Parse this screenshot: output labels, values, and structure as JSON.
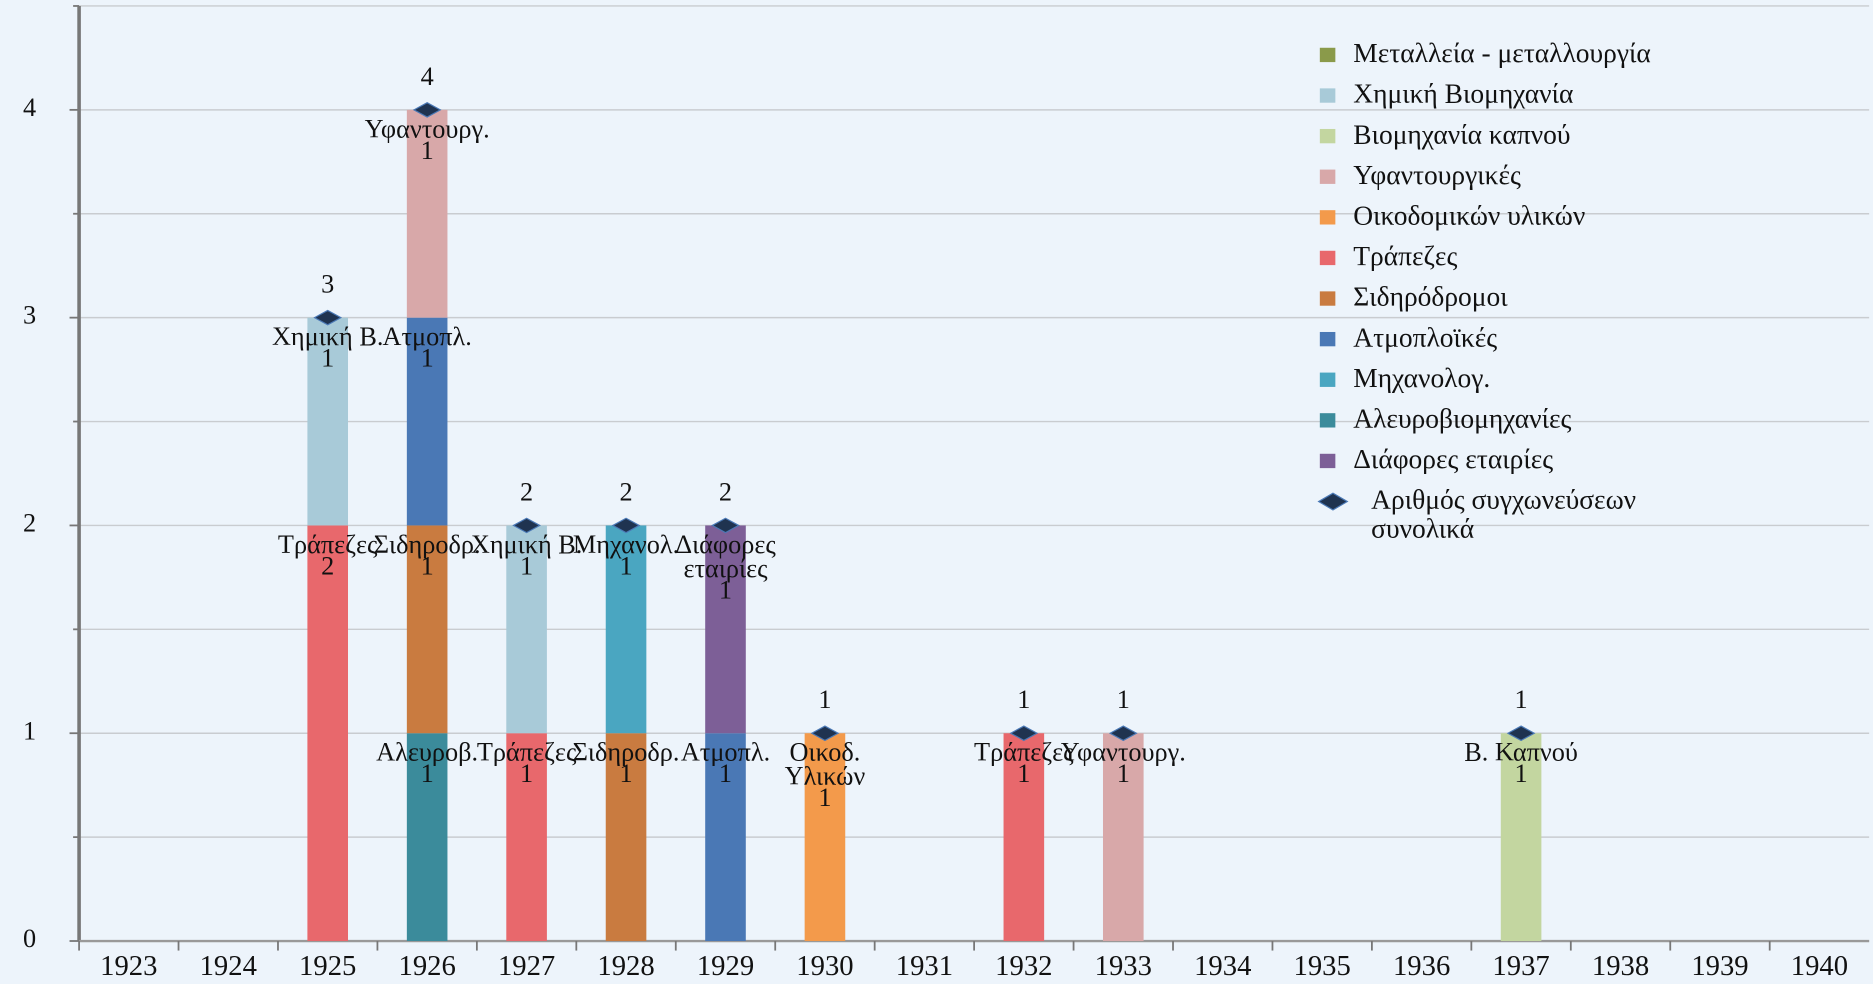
{
  "chart_data": {
    "type": "bar",
    "categories": [
      "1923",
      "1924",
      "1925",
      "1926",
      "1927",
      "1928",
      "1929",
      "1930",
      "1931",
      "1932",
      "1933",
      "1934",
      "1935",
      "1936",
      "1937",
      "1938",
      "1939",
      "1940"
    ],
    "ylim": [
      0,
      4.5
    ],
    "yticks": [
      0,
      1,
      2,
      3,
      4
    ],
    "minor_yticks": [
      0.5,
      1.5,
      2.5,
      3.5,
      4.5
    ],
    "grid": true,
    "stacked": true,
    "legend": "upper right",
    "series": [
      {
        "name": "Μεταλλεία - μεταλλουργία",
        "color": "#8a9a4a",
        "values": [
          0,
          0,
          0,
          0,
          0,
          0,
          0,
          0,
          0,
          0,
          0,
          0,
          0,
          0,
          0,
          0,
          0,
          0
        ],
        "labels": [
          null,
          null,
          null,
          null,
          null,
          null,
          null,
          null,
          null,
          null,
          null,
          null,
          null,
          null,
          null,
          null,
          null,
          null
        ]
      },
      {
        "name": "Χημική Βιομηχανία",
        "color": "#a8cad8",
        "values": [
          0,
          0,
          1,
          0,
          1,
          0,
          0,
          0,
          0,
          0,
          0,
          0,
          0,
          0,
          0,
          0,
          0,
          0
        ],
        "labels": [
          null,
          null,
          "Χημική Β.",
          null,
          "Χημική Β.",
          null,
          null,
          null,
          null,
          null,
          null,
          null,
          null,
          null,
          null,
          null,
          null,
          null
        ]
      },
      {
        "name": "Βιομηχανία καπνού",
        "color": "#c3d6a0",
        "values": [
          0,
          0,
          0,
          0,
          0,
          0,
          0,
          0,
          0,
          0,
          0,
          0,
          0,
          0,
          1,
          0,
          0,
          0
        ],
        "labels": [
          null,
          null,
          null,
          null,
          null,
          null,
          null,
          null,
          null,
          null,
          null,
          null,
          null,
          null,
          "Β. Καπνού",
          null,
          null,
          null
        ]
      },
      {
        "name": "Υφαντουργικές",
        "color": "#d8a8a9",
        "values": [
          0,
          0,
          0,
          1,
          0,
          0,
          0,
          0,
          0,
          0,
          1,
          0,
          0,
          0,
          0,
          0,
          0,
          0
        ],
        "labels": [
          null,
          null,
          null,
          "Υφαντουργ.",
          null,
          null,
          null,
          null,
          null,
          null,
          "Υφαντουργ.",
          null,
          null,
          null,
          null,
          null,
          null,
          null
        ]
      },
      {
        "name": "Οικοδομικών υλικών",
        "color": "#f39a4b",
        "values": [
          0,
          0,
          0,
          0,
          0,
          0,
          0,
          1,
          0,
          0,
          0,
          0,
          0,
          0,
          0,
          0,
          0,
          0
        ],
        "labels": [
          null,
          null,
          null,
          null,
          null,
          null,
          null,
          "Οικοδ.\nΥλικών",
          null,
          null,
          null,
          null,
          null,
          null,
          null,
          null,
          null,
          null
        ]
      },
      {
        "name": "Τράπεζες",
        "color": "#e8686c",
        "values": [
          0,
          0,
          2,
          0,
          1,
          0,
          0,
          0,
          0,
          1,
          0,
          0,
          0,
          0,
          0,
          0,
          0,
          0
        ],
        "labels": [
          null,
          null,
          "Τράπεζες",
          null,
          "Τράπεζες",
          null,
          null,
          null,
          null,
          "Τράπεζες",
          null,
          null,
          null,
          null,
          null,
          null,
          null,
          null
        ]
      },
      {
        "name": "Σιδηρόδρομοι",
        "color": "#c97b40",
        "values": [
          0,
          0,
          0,
          1,
          0,
          1,
          0,
          0,
          0,
          0,
          0,
          0,
          0,
          0,
          0,
          0,
          0,
          0
        ],
        "labels": [
          null,
          null,
          null,
          "Σιδηροδρ.",
          null,
          "Σιδηροδρ.",
          null,
          null,
          null,
          null,
          null,
          null,
          null,
          null,
          null,
          null,
          null,
          null
        ]
      },
      {
        "name": "Ατμοπλοϊκές",
        "color": "#4a78b5",
        "values": [
          0,
          0,
          0,
          1,
          0,
          0,
          1,
          0,
          0,
          0,
          0,
          0,
          0,
          0,
          0,
          0,
          0,
          0
        ],
        "labels": [
          null,
          null,
          null,
          "Ατμοπλ.",
          null,
          null,
          "Ατμοπλ.",
          null,
          null,
          null,
          null,
          null,
          null,
          null,
          null,
          null,
          null,
          null
        ]
      },
      {
        "name": "Μηχανολογ.",
        "color": "#4aa6c1",
        "values": [
          0,
          0,
          0,
          0,
          0,
          1,
          0,
          0,
          0,
          0,
          0,
          0,
          0,
          0,
          0,
          0,
          0,
          0
        ],
        "labels": [
          null,
          null,
          null,
          null,
          null,
          "Μηχανολ.",
          null,
          null,
          null,
          null,
          null,
          null,
          null,
          null,
          null,
          null,
          null,
          null
        ]
      },
      {
        "name": "Αλευροβιομηχανίες",
        "color": "#3b8b9b",
        "values": [
          0,
          0,
          0,
          1,
          0,
          0,
          0,
          0,
          0,
          0,
          0,
          0,
          0,
          0,
          0,
          0,
          0,
          0
        ],
        "labels": [
          null,
          null,
          null,
          "Αλευροβ.",
          null,
          null,
          null,
          null,
          null,
          null,
          null,
          null,
          null,
          null,
          null,
          null,
          null,
          null
        ]
      },
      {
        "name": "Διάφορες εταιρίες",
        "color": "#7d5f97",
        "values": [
          0,
          0,
          0,
          0,
          0,
          0,
          1,
          0,
          0,
          0,
          0,
          0,
          0,
          0,
          0,
          0,
          0,
          0
        ],
        "labels": [
          null,
          null,
          null,
          null,
          null,
          null,
          "Διάφορες\nεταιρίες",
          null,
          null,
          null,
          null,
          null,
          null,
          null,
          null,
          null,
          null,
          null
        ]
      },
      {
        "name": "Αριθμός συγχωνεύσεων\nσυνολικά",
        "type": "scatter",
        "marker": "diamond",
        "color": "#1f3350",
        "values": [
          null,
          null,
          3,
          4,
          2,
          2,
          2,
          1,
          null,
          1,
          1,
          null,
          null,
          null,
          1,
          null,
          null,
          null
        ]
      }
    ]
  }
}
